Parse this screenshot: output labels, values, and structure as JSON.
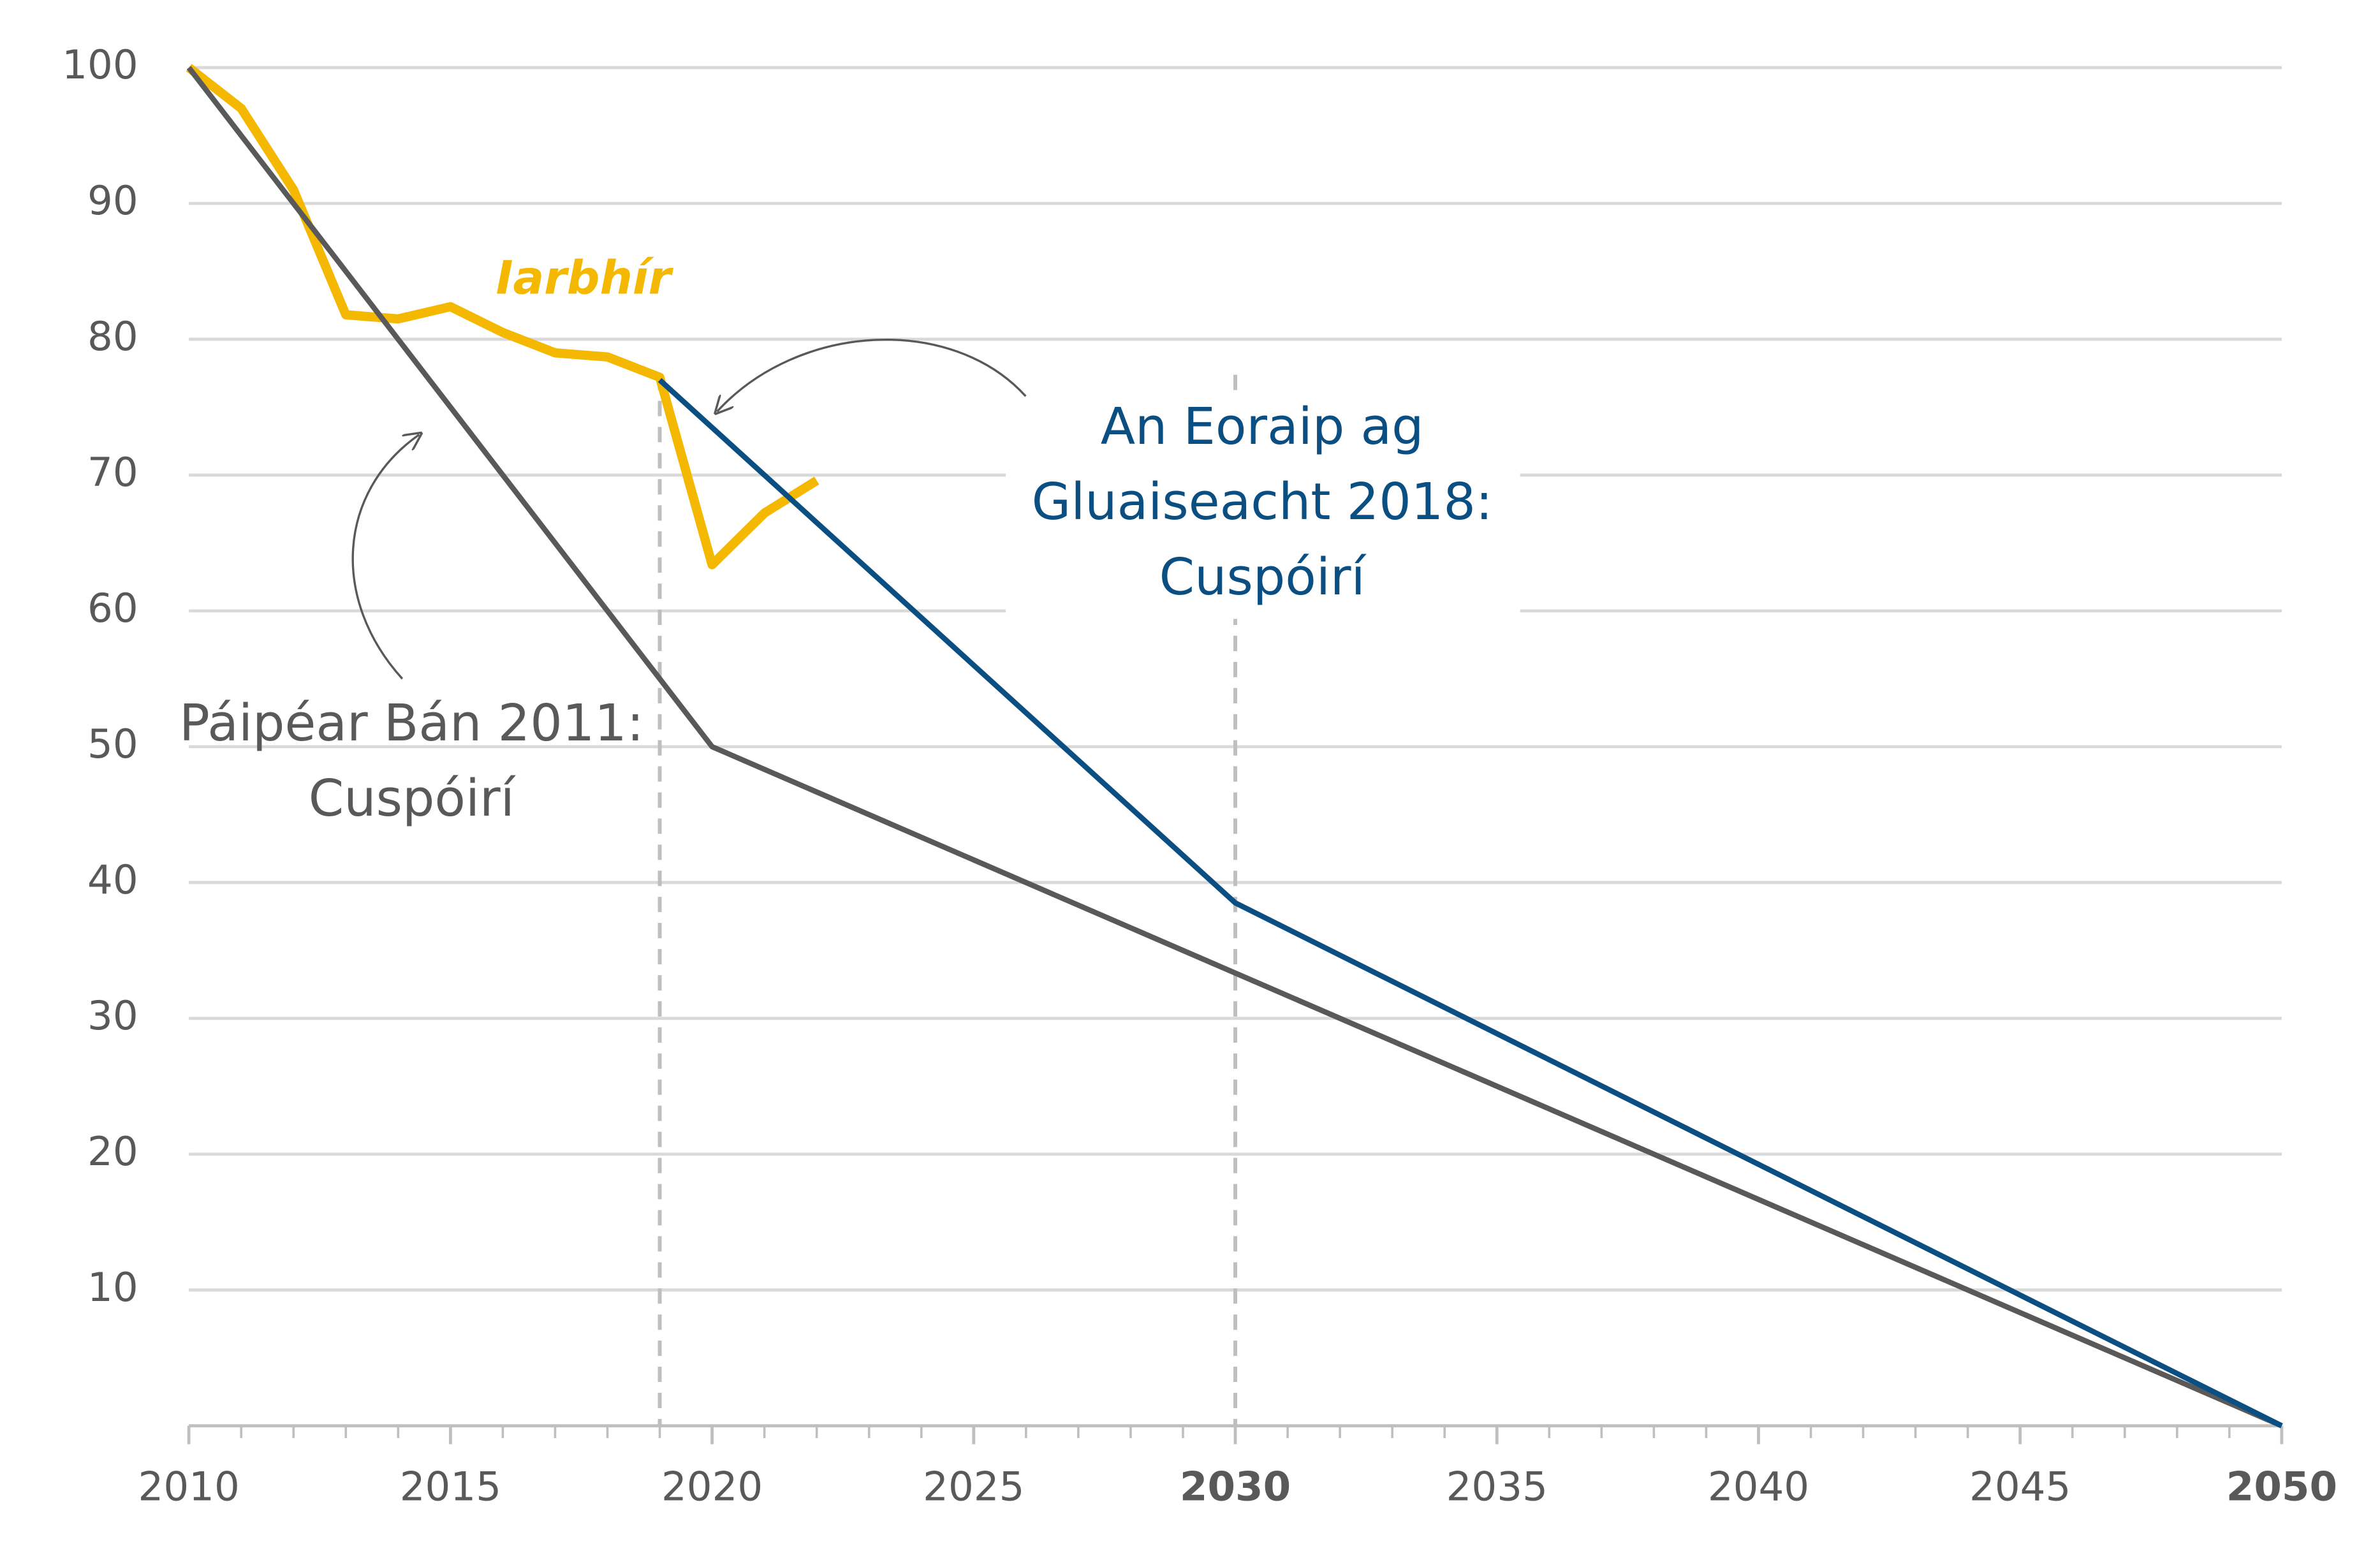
{
  "chart_data": {
    "type": "line",
    "xlim": [
      2010,
      2050
    ],
    "xticks": [
      2010,
      2015,
      2020,
      2025,
      2030,
      2035,
      2040,
      2045,
      2050
    ],
    "xticks_bold": [
      2030,
      2050
    ],
    "ylim": [
      0,
      100
    ],
    "yticks": [
      10,
      20,
      30,
      40,
      50,
      60,
      70,
      80,
      90,
      100
    ],
    "grid": true,
    "dashed_x": [
      2019,
      2030
    ],
    "series": [
      {
        "name": "Iarbhír",
        "color": "#f5b800",
        "x": [
          2010,
          2011,
          2012,
          2013,
          2014,
          2015,
          2016,
          2017,
          2018,
          2019,
          2020,
          2021,
          2022
        ],
        "values": [
          100,
          97,
          91,
          81.8,
          81.5,
          82.4,
          80.5,
          79,
          78.7,
          77.2,
          63.4,
          67.2,
          69.6
        ]
      },
      {
        "label_lines": [
          "Páipéar Bán 2011:",
          "Cuspóirí"
        ],
        "color": "#595959",
        "x": [
          2010,
          2020,
          2050
        ],
        "values": [
          100,
          50,
          0
        ]
      },
      {
        "label_lines": [
          "An Eoraip ag",
          "Gluaiseacht 2018:",
          "Cuspóirí"
        ],
        "color": "#0b4f82",
        "x": [
          2019,
          2030,
          2050
        ],
        "values": [
          77,
          38.5,
          0
        ]
      }
    ]
  }
}
